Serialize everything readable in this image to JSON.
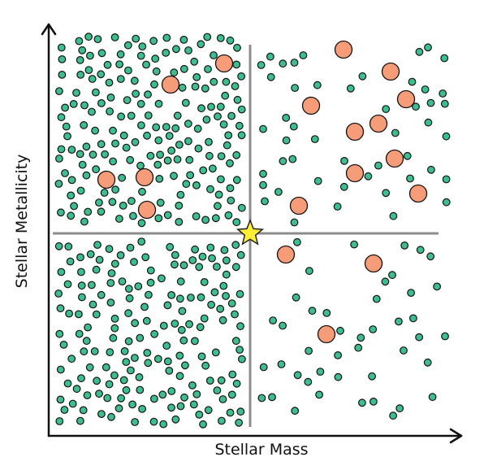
{
  "axes": {
    "x_label": "Stellar Mass",
    "y_label": "Stellar Metallicity"
  },
  "legend": [],
  "colors": {
    "small_dot_fill": "#3DBE8E",
    "small_dot_stroke": "#111111",
    "large_dot_fill": "#F79C78",
    "large_dot_stroke": "#111111",
    "divider": "#8C8C8C",
    "star_fill": "#FFEE33",
    "axis": "#111111"
  },
  "icons": {
    "center_marker": "star-icon"
  },
  "quadrants": [
    {
      "name": "low-mass-high-metallicity",
      "small_dots": "many",
      "large_dots": 4
    },
    {
      "name": "high-mass-high-metallicity",
      "small_dots": "sparse",
      "large_dots": 10
    },
    {
      "name": "low-mass-low-metallicity",
      "small_dots": "many",
      "large_dots": 0
    },
    {
      "name": "high-mass-low-metallicity",
      "small_dots": "sparse",
      "large_dots": 3
    }
  ]
}
